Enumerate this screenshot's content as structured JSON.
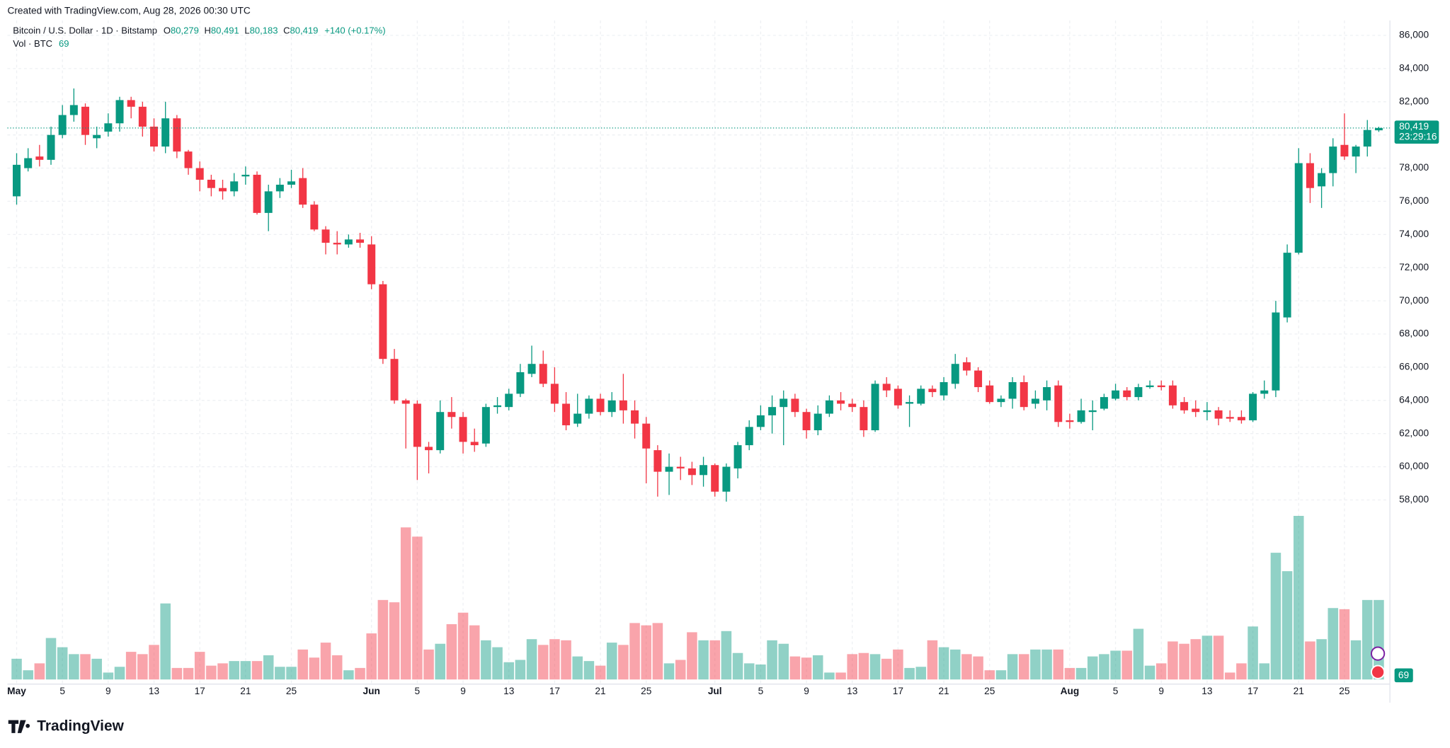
{
  "header": {
    "created": "Created with TradingView.com, Aug 28, 2026 00:30 UTC",
    "brand": "TradingView"
  },
  "chart_data": {
    "type": "candlestick",
    "ylim": [
      46900,
      86900
    ],
    "yticks": [
      {
        "value": 58000,
        "label": "58,000"
      },
      {
        "value": 60000,
        "label": "60,000"
      },
      {
        "value": 62000,
        "label": "62,000"
      },
      {
        "value": 64000,
        "label": "64,000"
      },
      {
        "value": 66000,
        "label": "66,000"
      },
      {
        "value": 68000,
        "label": "68,000"
      },
      {
        "value": 70000,
        "label": "70,000"
      },
      {
        "value": 72000,
        "label": "72,000"
      },
      {
        "value": 74000,
        "label": "74,000"
      },
      {
        "value": 76000,
        "label": "76,000"
      },
      {
        "value": 78000,
        "label": "78,000"
      },
      {
        "value": 80000,
        "label": "80,000"
      },
      {
        "value": 82000,
        "label": "82,000"
      },
      {
        "value": 84000,
        "label": "84,000"
      },
      {
        "value": 86000,
        "label": "86,000"
      }
    ],
    "xticks": [
      {
        "value": 0,
        "label": "May"
      },
      {
        "value": 4,
        "label": "5"
      },
      {
        "value": 8,
        "label": "9"
      },
      {
        "value": 12,
        "label": "13"
      },
      {
        "value": 16,
        "label": "17"
      },
      {
        "value": 20,
        "label": "21"
      },
      {
        "value": 24,
        "label": "25"
      },
      {
        "value": 31,
        "label": "Jun"
      },
      {
        "value": 35,
        "label": "5"
      },
      {
        "value": 39,
        "label": "9"
      },
      {
        "value": 43,
        "label": "13"
      },
      {
        "value": 47,
        "label": "17"
      },
      {
        "value": 51,
        "label": "21"
      },
      {
        "value": 55,
        "label": "25"
      },
      {
        "value": 61,
        "label": "Jul"
      },
      {
        "value": 65,
        "label": "5"
      },
      {
        "value": 69,
        "label": "9"
      },
      {
        "value": 73,
        "label": "13"
      },
      {
        "value": 77,
        "label": "17"
      },
      {
        "value": 81,
        "label": "21"
      },
      {
        "value": 85,
        "label": "25"
      },
      {
        "value": 92,
        "label": "Aug"
      },
      {
        "value": 96,
        "label": "5"
      },
      {
        "value": 100,
        "label": "9"
      },
      {
        "value": 104,
        "label": "13"
      },
      {
        "value": 108,
        "label": "17"
      },
      {
        "value": 112,
        "label": "21"
      },
      {
        "value": 116,
        "label": "25"
      }
    ],
    "up_color": "#089981",
    "down_color": "#f23645",
    "grid": true,
    "series": [
      {
        "name": "Bitcoin / U.S. Dollar · 1D · Bitstamp",
        "last_keys": [
          "O",
          "H",
          "L",
          "C"
        ],
        "last_labels": [
          "80,279",
          "80,491",
          "80,183",
          "80,419"
        ],
        "change": "+140 (+0.17%)",
        "countdown": "23:29:16",
        "ohlc": [
          [
            76300,
            78900,
            75800,
            78200
          ],
          [
            78000,
            79200,
            77800,
            78600
          ],
          [
            78700,
            79400,
            78100,
            78500
          ],
          [
            78500,
            80500,
            78200,
            80000
          ],
          [
            80000,
            81800,
            79800,
            81200
          ],
          [
            81200,
            82800,
            80800,
            81800
          ],
          [
            81700,
            81900,
            79400,
            80000
          ],
          [
            79800,
            80500,
            79200,
            80000
          ],
          [
            80200,
            81300,
            79900,
            80700
          ],
          [
            80700,
            82300,
            80200,
            82100
          ],
          [
            82100,
            82300,
            81000,
            81700
          ],
          [
            81700,
            82000,
            79900,
            80500
          ],
          [
            80500,
            81000,
            79000,
            79300
          ],
          [
            79300,
            82000,
            78900,
            81000
          ],
          [
            81000,
            81200,
            78600,
            79000
          ],
          [
            79000,
            79100,
            77600,
            78000
          ],
          [
            78000,
            78400,
            76600,
            77300
          ],
          [
            77300,
            77600,
            76300,
            76800
          ],
          [
            76800,
            77300,
            76100,
            76600
          ],
          [
            76600,
            77700,
            76300,
            77200
          ],
          [
            77500,
            78100,
            77000,
            77600
          ],
          [
            77600,
            77800,
            75200,
            75300
          ],
          [
            75300,
            77000,
            74200,
            76600
          ],
          [
            76600,
            77400,
            76200,
            77000
          ],
          [
            77000,
            77900,
            76800,
            77200
          ],
          [
            77400,
            78000,
            75600,
            75800
          ],
          [
            75800,
            76000,
            74200,
            74300
          ],
          [
            74300,
            74500,
            72800,
            73500
          ],
          [
            73500,
            74200,
            72800,
            73400
          ],
          [
            73400,
            74000,
            73200,
            73700
          ],
          [
            73700,
            74100,
            73200,
            73500
          ],
          [
            73400,
            73900,
            70700,
            71000
          ],
          [
            71000,
            71200,
            66200,
            66500
          ],
          [
            66500,
            67100,
            63800,
            64000
          ],
          [
            64000,
            64100,
            61100,
            63800
          ],
          [
            63800,
            64000,
            59200,
            61200
          ],
          [
            61200,
            61500,
            59600,
            61000
          ],
          [
            61000,
            64000,
            60800,
            63300
          ],
          [
            63300,
            64200,
            62300,
            63000
          ],
          [
            63000,
            63300,
            60800,
            61500
          ],
          [
            61500,
            62300,
            60900,
            61300
          ],
          [
            61400,
            63800,
            61200,
            63600
          ],
          [
            63600,
            64200,
            63200,
            63700
          ],
          [
            63600,
            64700,
            63400,
            64400
          ],
          [
            64400,
            66200,
            64200,
            65700
          ],
          [
            65600,
            67300,
            65400,
            66200
          ],
          [
            66200,
            67000,
            64800,
            65000
          ],
          [
            65000,
            66000,
            63300,
            63800
          ],
          [
            63800,
            64500,
            62200,
            62500
          ],
          [
            62600,
            64400,
            62400,
            63200
          ],
          [
            63200,
            64300,
            62900,
            64100
          ],
          [
            64100,
            64400,
            63100,
            63300
          ],
          [
            63300,
            64500,
            63000,
            64000
          ],
          [
            64000,
            65600,
            62600,
            63400
          ],
          [
            63400,
            64000,
            61700,
            62600
          ],
          [
            62600,
            63000,
            59000,
            61100
          ],
          [
            61000,
            61300,
            58200,
            59700
          ],
          [
            59700,
            60800,
            58300,
            60000
          ],
          [
            60000,
            60600,
            59200,
            59900
          ],
          [
            59900,
            60300,
            58900,
            59500
          ],
          [
            59500,
            60600,
            58800,
            60100
          ],
          [
            60100,
            60200,
            58200,
            58500
          ],
          [
            58500,
            60200,
            57900,
            60000
          ],
          [
            59900,
            61500,
            59300,
            61300
          ],
          [
            61300,
            62800,
            61000,
            62400
          ],
          [
            62400,
            63700,
            62200,
            63100
          ],
          [
            63100,
            64300,
            62000,
            63600
          ],
          [
            63600,
            64600,
            61300,
            64100
          ],
          [
            64100,
            64400,
            63000,
            63300
          ],
          [
            63300,
            63500,
            61700,
            62200
          ],
          [
            62200,
            63700,
            61900,
            63200
          ],
          [
            63200,
            64300,
            63000,
            64000
          ],
          [
            64000,
            64500,
            63400,
            63800
          ],
          [
            63800,
            64100,
            63300,
            63600
          ],
          [
            63600,
            64000,
            61800,
            62200
          ],
          [
            62200,
            65200,
            62100,
            65000
          ],
          [
            65000,
            65400,
            64200,
            64600
          ],
          [
            64700,
            64900,
            63500,
            63700
          ],
          [
            63800,
            64300,
            62400,
            63900
          ],
          [
            63800,
            64900,
            63700,
            64700
          ],
          [
            64700,
            64900,
            64200,
            64500
          ],
          [
            64300,
            65400,
            64000,
            65100
          ],
          [
            65000,
            66800,
            64700,
            66200
          ],
          [
            66300,
            66600,
            65500,
            65800
          ],
          [
            65800,
            66000,
            64500,
            64800
          ],
          [
            64900,
            65200,
            63800,
            63900
          ],
          [
            63900,
            64300,
            63600,
            64100
          ],
          [
            64100,
            65400,
            63500,
            65100
          ],
          [
            65100,
            65500,
            63400,
            63600
          ],
          [
            63800,
            64600,
            63500,
            64100
          ],
          [
            64000,
            65200,
            63400,
            64800
          ],
          [
            64900,
            65200,
            62400,
            62700
          ],
          [
            62800,
            63200,
            62300,
            62700
          ],
          [
            62700,
            64100,
            62600,
            63400
          ],
          [
            63300,
            64000,
            62200,
            63400
          ],
          [
            63500,
            64400,
            63400,
            64200
          ],
          [
            64100,
            65000,
            64000,
            64600
          ],
          [
            64600,
            64800,
            64000,
            64200
          ],
          [
            64200,
            65000,
            64000,
            64800
          ],
          [
            64800,
            65200,
            64700,
            64900
          ],
          [
            64900,
            65200,
            64600,
            64800
          ],
          [
            64900,
            65200,
            63500,
            63700
          ],
          [
            63900,
            64200,
            63200,
            63400
          ],
          [
            63500,
            64000,
            63000,
            63300
          ],
          [
            63300,
            63900,
            62800,
            63400
          ],
          [
            63400,
            63600,
            62500,
            62900
          ],
          [
            63000,
            63400,
            62700,
            62900
          ],
          [
            63000,
            63400,
            62600,
            62800
          ],
          [
            62800,
            64500,
            62700,
            64400
          ],
          [
            64400,
            65200,
            64100,
            64600
          ],
          [
            64600,
            70000,
            64200,
            69300
          ],
          [
            69000,
            73400,
            68700,
            72900
          ],
          [
            72900,
            79200,
            72800,
            78300
          ],
          [
            78300,
            78900,
            75900,
            76800
          ],
          [
            76900,
            78000,
            75600,
            77700
          ],
          [
            77700,
            79800,
            76900,
            79300
          ],
          [
            79400,
            81300,
            78500,
            78700
          ],
          [
            78700,
            79400,
            77700,
            79300
          ],
          [
            79300,
            80900,
            78700,
            80300
          ],
          [
            80279,
            80491,
            80183,
            80419
          ]
        ]
      },
      {
        "name": "Vol · BTC",
        "values": [
          18,
          8,
          14,
          36,
          28,
          22,
          22,
          18,
          6,
          11,
          24,
          22,
          30,
          66,
          10,
          10,
          24,
          12,
          14,
          16,
          16,
          16,
          21,
          11,
          11,
          26,
          19,
          32,
          21,
          8,
          10,
          40,
          69,
          67,
          132,
          124,
          26,
          31,
          48,
          58,
          47,
          34,
          28,
          15,
          17,
          35,
          30,
          35,
          34,
          20,
          16,
          12,
          32,
          30,
          49,
          47,
          49,
          14,
          17,
          41,
          34,
          34,
          42,
          23,
          14,
          13,
          34,
          31,
          20,
          19,
          21,
          6,
          6,
          22,
          23,
          22,
          18,
          26,
          10,
          11,
          34,
          28,
          26,
          22,
          20,
          8,
          8,
          22,
          22,
          26,
          26,
          26,
          10,
          10,
          20,
          22,
          25,
          25,
          44,
          12,
          14,
          33,
          31,
          35,
          38,
          38,
          6,
          14,
          46,
          14,
          110,
          94,
          142,
          33,
          35,
          62,
          61,
          34,
          69,
          69
        ]
      }
    ]
  }
}
